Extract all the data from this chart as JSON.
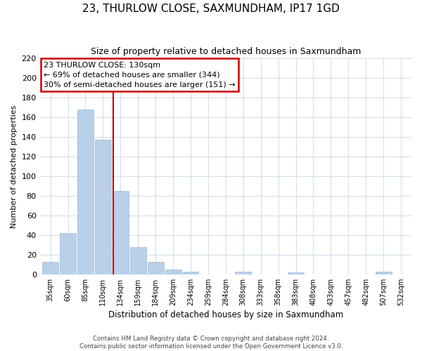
{
  "title": "23, THURLOW CLOSE, SAXMUNDHAM, IP17 1GD",
  "subtitle": "Size of property relative to detached houses in Saxmundham",
  "xlabel": "Distribution of detached houses by size in Saxmundham",
  "ylabel": "Number of detached properties",
  "bar_labels": [
    "35sqm",
    "60sqm",
    "85sqm",
    "110sqm",
    "134sqm",
    "159sqm",
    "184sqm",
    "209sqm",
    "234sqm",
    "259sqm",
    "284sqm",
    "308sqm",
    "333sqm",
    "358sqm",
    "383sqm",
    "408sqm",
    "433sqm",
    "457sqm",
    "482sqm",
    "507sqm",
    "532sqm"
  ],
  "bar_values": [
    13,
    42,
    168,
    137,
    85,
    28,
    13,
    5,
    3,
    0,
    0,
    3,
    0,
    0,
    2,
    0,
    0,
    0,
    0,
    3,
    0
  ],
  "bar_color": "#b8d0e8",
  "bar_edge_color": "#a0b8d0",
  "grid_color": "#d0dce8",
  "vline_x": 3.57,
  "vline_color": "#cc0000",
  "annotation_line1": "23 THURLOW CLOSE: 130sqm",
  "annotation_line2": "← 69% of detached houses are smaller (344)",
  "annotation_line3": "30% of semi-detached houses are larger (151) →",
  "ylim": [
    0,
    220
  ],
  "yticks": [
    0,
    20,
    40,
    60,
    80,
    100,
    120,
    140,
    160,
    180,
    200,
    220
  ],
  "footer_line1": "Contains HM Land Registry data © Crown copyright and database right 2024.",
  "footer_line2": "Contains public sector information licensed under the Open Government Licence v3.0."
}
